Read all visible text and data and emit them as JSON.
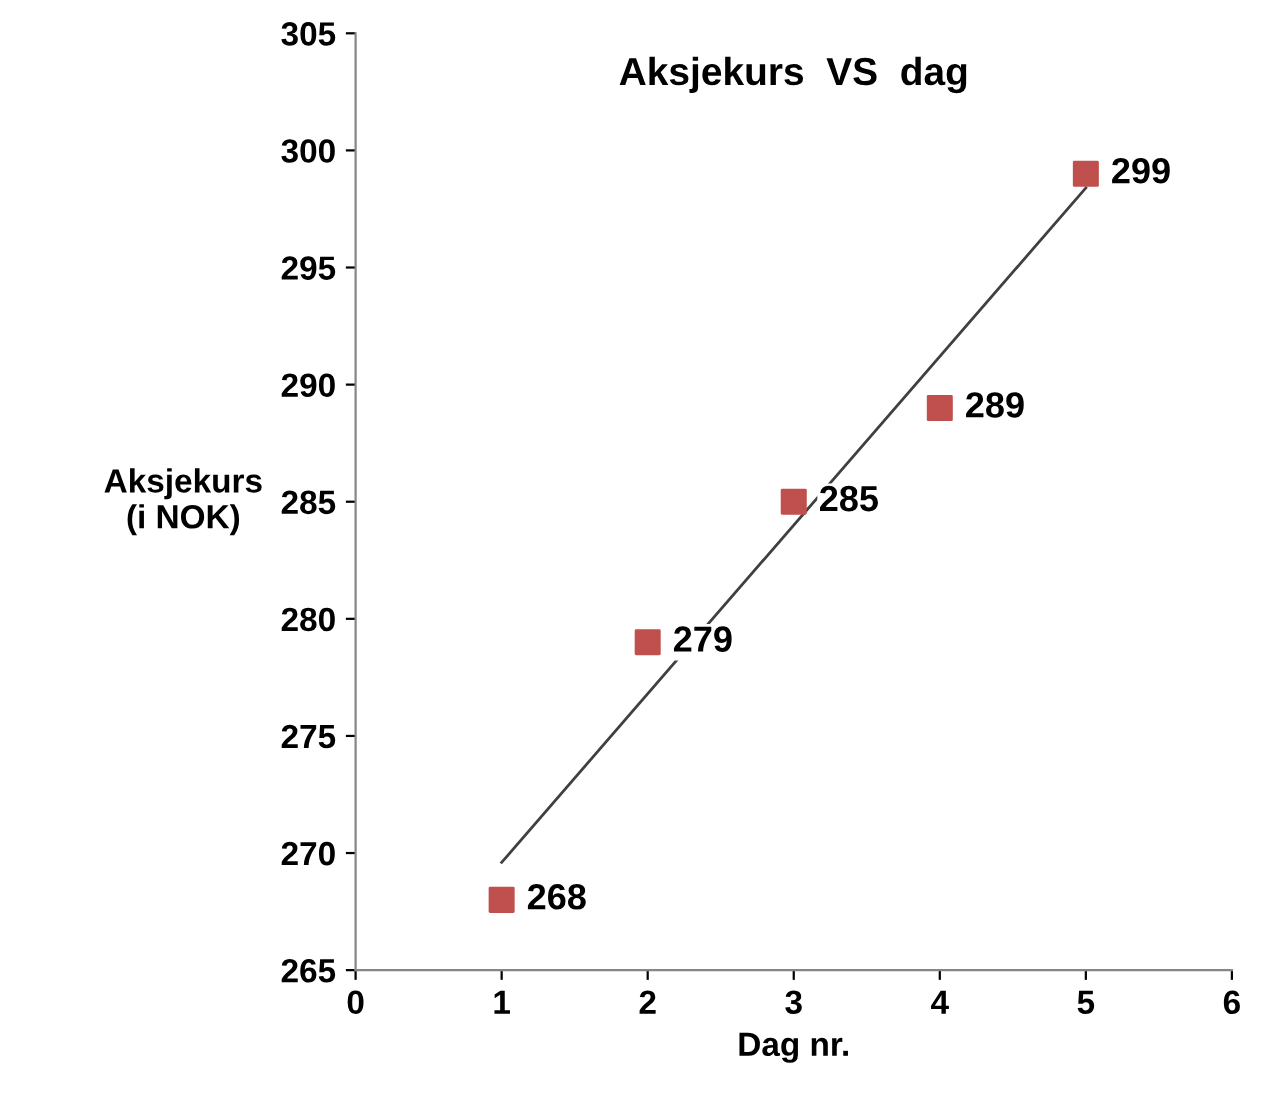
{
  "chart_data": {
    "type": "scatter",
    "title": "Aksjekurs  VS  dag",
    "xlabel": "Dag nr.",
    "ylabel": "Aksjekurs\n(i NOK)",
    "xlim": [
      0,
      6
    ],
    "xticks": [
      0,
      1,
      2,
      3,
      4,
      5,
      6
    ],
    "ylim": [
      265,
      305
    ],
    "yticks": [
      265,
      270,
      275,
      280,
      285,
      290,
      295,
      300,
      305
    ],
    "grid": false,
    "legend": false,
    "series": [
      {
        "color": "#c0504d",
        "marker": "square",
        "x": [
          1,
          2,
          3,
          4,
          5
        ],
        "values": [
          268,
          279,
          285,
          289,
          299
        ],
        "value_labels": [
          "268",
          "279",
          "285",
          "289",
          "299"
        ]
      },
      {
        "type": "line",
        "color": "#404040",
        "marker": "none",
        "line_style": "solid",
        "x": [
          1,
          5
        ],
        "values": [
          269.6,
          298.4
        ]
      }
    ]
  }
}
